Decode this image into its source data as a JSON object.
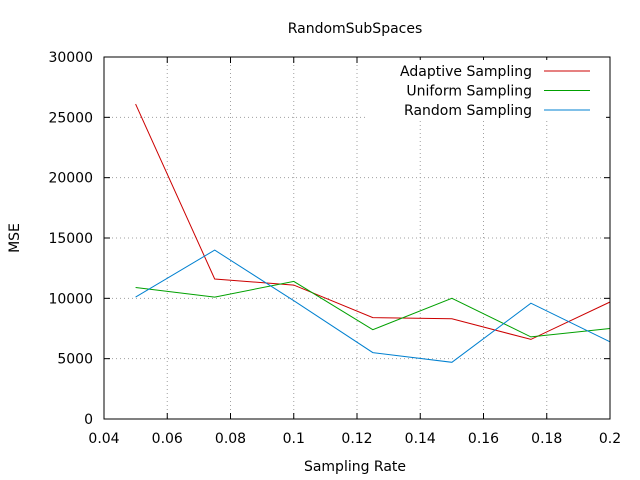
{
  "chart_data": {
    "type": "line",
    "title": "RandomSubSpaces",
    "xlabel": "Sampling Rate",
    "ylabel": "MSE",
    "xlim": [
      0.04,
      0.2
    ],
    "ylim": [
      0,
      30000
    ],
    "x_ticks": [
      0.04,
      0.06,
      0.08,
      0.1,
      0.12,
      0.14,
      0.16,
      0.18,
      0.2
    ],
    "x_tick_labels": [
      "0.04",
      "0.06",
      "0.08",
      "0.1",
      "0.12",
      "0.14",
      "0.16",
      "0.18",
      "0.2"
    ],
    "y_ticks": [
      0,
      5000,
      10000,
      15000,
      20000,
      25000,
      30000
    ],
    "y_tick_labels": [
      "0",
      "5000",
      "10000",
      "15000",
      "20000",
      "25000",
      "30000"
    ],
    "grid": true,
    "legend_position": "top-right",
    "x": [
      0.05,
      0.075,
      0.1,
      0.125,
      0.15,
      0.175,
      0.2
    ],
    "series": [
      {
        "name": "Adaptive Sampling",
        "color": "#cc0000",
        "values": [
          26100,
          11600,
          11100,
          8400,
          8300,
          6600,
          9700
        ]
      },
      {
        "name": "Uniform Sampling",
        "color": "#00a000",
        "values": [
          10900,
          10100,
          11400,
          7400,
          10000,
          6800,
          7500
        ]
      },
      {
        "name": "Random Sampling",
        "color": "#0080d0",
        "values": [
          10100,
          14000,
          9800,
          5500,
          4700,
          9600,
          6400
        ]
      }
    ]
  }
}
